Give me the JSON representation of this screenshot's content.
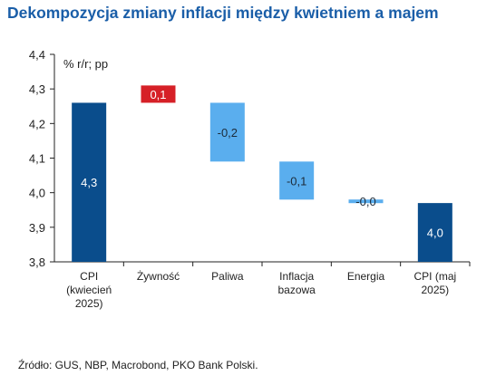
{
  "header": {
    "title": "Dekompozycja zmiany inflacji między kwietniem a majem"
  },
  "footer": {
    "source": "Źródło: GUS, NBP, Macrobond, PKO Bank Polski."
  },
  "colors": {
    "total": "#0a4d8c",
    "increase": "#d62027",
    "decrease": "#5aaeee",
    "title": "#1a5ea8"
  },
  "chart_data": {
    "type": "bar",
    "subtype": "waterfall",
    "unit_label": "% r/r; pp",
    "ylim": [
      3.8,
      4.4
    ],
    "yticks": [
      "3,8",
      "3,9",
      "4,0",
      "4,1",
      "4,2",
      "4,3",
      "4,4"
    ],
    "ytick_values": [
      3.8,
      3.9,
      4.0,
      4.1,
      4.2,
      4.3,
      4.4
    ],
    "grid": false,
    "legend": "none",
    "categories": [
      [
        "CPI",
        "(kwiecień",
        "2025)"
      ],
      [
        "Żywność"
      ],
      [
        "Paliwa"
      ],
      [
        "Inflacja",
        "bazowa"
      ],
      [
        "Energia"
      ],
      [
        "CPI (maj",
        "2025)"
      ]
    ],
    "bars": [
      {
        "kind": "total",
        "start": 3.8,
        "end": 4.26,
        "label": "4,3"
      },
      {
        "kind": "increase",
        "start": 4.26,
        "end": 4.31,
        "label": "0,1"
      },
      {
        "kind": "decrease",
        "start": 4.26,
        "end": 4.09,
        "label": "-0,2"
      },
      {
        "kind": "decrease",
        "start": 4.09,
        "end": 3.98,
        "label": "-0,1"
      },
      {
        "kind": "decrease",
        "start": 3.98,
        "end": 3.97,
        "label": "-0,0"
      },
      {
        "kind": "total",
        "start": 3.8,
        "end": 3.97,
        "label": "4,0"
      }
    ]
  }
}
